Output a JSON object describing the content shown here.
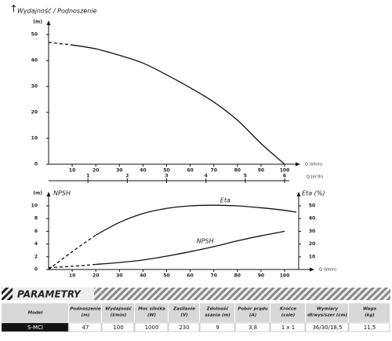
{
  "chart_data": [
    {
      "type": "line",
      "title": "Wydajność / Podnoszenie",
      "ylabel": "(m)",
      "xlabel": "Q (l/min)",
      "x2label": "Q (m³/h)",
      "xlim": [
        0,
        100
      ],
      "xticks": [
        10,
        20,
        30,
        40,
        50,
        60,
        70,
        80,
        90,
        100
      ],
      "x2lim": [
        0,
        6
      ],
      "x2ticks": [
        1,
        2,
        3,
        4,
        5,
        6
      ],
      "ylim": [
        0,
        50
      ],
      "yticks": [
        0,
        10,
        20,
        30,
        40,
        50
      ],
      "series": [
        {
          "color": "#111111",
          "dashed_x_max": 10,
          "x": [
            0,
            10,
            20,
            30,
            40,
            50,
            60,
            70,
            80,
            90,
            100
          ],
          "values": [
            47,
            46,
            44.5,
            42,
            39,
            34.5,
            29.5,
            24,
            17,
            8,
            0
          ]
        }
      ]
    },
    {
      "type": "line",
      "ylabel": "(m)",
      "ytitle": "NPSH",
      "y2label": "Eta (%)",
      "xlabel": "Q (l/min)",
      "xlim": [
        0,
        100
      ],
      "xticks": [
        10,
        20,
        30,
        40,
        50,
        60,
        70,
        80,
        90,
        100
      ],
      "ylim": [
        0,
        10
      ],
      "yticks": [
        0,
        2,
        4,
        6,
        8,
        10
      ],
      "y2lim": [
        0,
        50
      ],
      "y2ticks": [
        10,
        20,
        30,
        40,
        50
      ],
      "series": [
        {
          "name": "Eta",
          "axis": "y2",
          "color": "#111111",
          "dashed_x_max": 20,
          "x": [
            0,
            10,
            20,
            30,
            40,
            50,
            60,
            70,
            80,
            90,
            100,
            105
          ],
          "values": [
            0,
            14,
            27,
            37,
            44,
            48,
            50,
            50.5,
            50,
            48.5,
            46.5,
            45
          ]
        },
        {
          "name": "NPSH",
          "color": "#111111",
          "dashed_x_max": 20,
          "x": [
            0,
            10,
            20,
            30,
            40,
            50,
            60,
            70,
            80,
            90,
            100
          ],
          "values": [
            0.3,
            0.5,
            0.8,
            1.1,
            1.5,
            2.1,
            2.8,
            3.6,
            4.5,
            5.3,
            6
          ]
        }
      ]
    }
  ],
  "table": {
    "title": "PARAMETRY",
    "header": [
      [
        "Model"
      ],
      [
        "Podnoszenie",
        "(m)"
      ],
      [
        "Wydajność",
        "(l/min)"
      ],
      [
        "Moc silnika",
        "(W)"
      ],
      [
        "Zasilanie",
        "(V)"
      ],
      [
        "Zdolność",
        "ssania (m)"
      ],
      [
        "Pobór prądu",
        "(A)"
      ],
      [
        "Króćce",
        "(cale)"
      ],
      [
        "Wymiary",
        "dł/wys/szer (cm)"
      ],
      [
        "Waga",
        "(kg)"
      ]
    ],
    "rows": [
      [
        "S-MCI",
        "47",
        "100",
        "1000",
        "230",
        "9",
        "3,8",
        "1 x 1",
        "36/30/18,5",
        "11,5"
      ]
    ]
  }
}
